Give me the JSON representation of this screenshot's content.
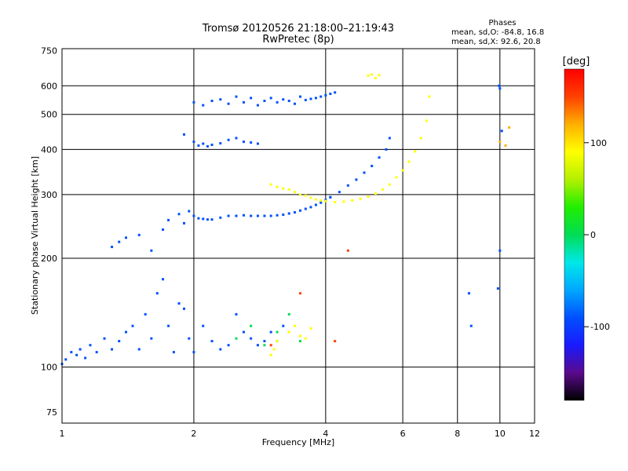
{
  "chart_data": {
    "type": "scatter",
    "title": "Tromsø 20120526 21:18:00–21:19:43",
    "subtitle": "RwPretec (8p)",
    "xlabel": "Frequency [MHz]",
    "ylabel": "Stationary phase Virtual Height [km]",
    "x_scale": "log",
    "y_scale": "log",
    "xlim": [
      1,
      12
    ],
    "ylim": [
      70,
      760
    ],
    "x_ticks": [
      1,
      2,
      4,
      6,
      8,
      10,
      12
    ],
    "y_ticks": [
      75,
      100,
      200,
      300,
      400,
      500,
      600,
      750
    ],
    "grid": true,
    "phases": {
      "header": "Phases",
      "line_o": "mean, sd,O: -84.8, 16.8",
      "line_x": "mean, sd,X: 92.6, 20.8"
    },
    "colorbar": {
      "label": "[deg]",
      "range": [
        -180,
        180
      ],
      "ticks": [
        100,
        0,
        -100
      ],
      "colors": [
        "#000000",
        "#5a0a8c",
        "#1a1aff",
        "#0050ff",
        "#00a8ff",
        "#00e8e8",
        "#00dd55",
        "#22ee00",
        "#b4f000",
        "#ffff00",
        "#ffb000",
        "#ff4000",
        "#ff0000"
      ]
    },
    "series": [
      {
        "phase": -100,
        "x": [
          1.0,
          1.02,
          1.05,
          1.08,
          1.1,
          1.13,
          1.16,
          1.2,
          1.25,
          1.3,
          1.35,
          1.4,
          1.45,
          1.5,
          1.55,
          1.6,
          1.65,
          1.7,
          1.75,
          1.8,
          1.85,
          1.9,
          1.95,
          2.0,
          2.1,
          2.2,
          2.3,
          2.4,
          2.5,
          2.6,
          2.7,
          2.8,
          2.9,
          3.0,
          3.1,
          3.2
        ],
        "y": [
          102,
          105,
          110,
          108,
          112,
          106,
          115,
          110,
          120,
          112,
          118,
          125,
          130,
          112,
          140,
          120,
          160,
          175,
          130,
          110,
          150,
          145,
          120,
          110,
          130,
          118,
          112,
          115,
          140,
          125,
          120,
          115,
          118,
          125,
          118,
          130
        ]
      },
      {
        "phase": -100,
        "x": [
          1.3,
          1.35,
          1.4,
          1.5,
          1.6,
          1.7,
          1.75,
          1.85,
          1.9,
          1.95,
          2.0,
          2.05,
          2.1,
          2.15,
          2.2,
          2.3,
          2.4,
          2.5,
          2.6,
          2.7,
          2.8,
          2.9,
          3.0,
          3.1,
          3.2,
          3.3,
          3.4,
          3.5,
          3.6,
          3.7,
          3.8,
          3.9,
          4.0,
          4.1
        ],
        "y": [
          215,
          222,
          228,
          232,
          210,
          240,
          255,
          265,
          250,
          270,
          262,
          258,
          257,
          256,
          256,
          259,
          262,
          262,
          263,
          262,
          262,
          262,
          262,
          263,
          264,
          266,
          268,
          271,
          274,
          277,
          281,
          285,
          290,
          295
        ]
      },
      {
        "phase": -100,
        "x": [
          4.1,
          4.3,
          4.5,
          4.7,
          4.9,
          5.1,
          5.3,
          5.5,
          5.6
        ],
        "y": [
          295,
          305,
          318,
          330,
          345,
          360,
          380,
          400,
          430
        ]
      },
      {
        "phase": -100,
        "x": [
          1.9,
          2.0,
          2.05,
          2.1,
          2.15,
          2.2,
          2.3,
          2.4,
          2.5,
          2.6,
          2.7,
          2.8
        ],
        "y": [
          440,
          420,
          410,
          415,
          408,
          412,
          416,
          425,
          430,
          420,
          418,
          415
        ]
      },
      {
        "phase": -100,
        "x": [
          2.0,
          2.1,
          2.2,
          2.3,
          2.4,
          2.5,
          2.6,
          2.7,
          2.8,
          2.9,
          3.0,
          3.1,
          3.2,
          3.3,
          3.4,
          3.5,
          3.6,
          3.7,
          3.8,
          3.9,
          4.0,
          4.1,
          4.2
        ],
        "y": [
          540,
          530,
          545,
          550,
          535,
          560,
          540,
          555,
          530,
          545,
          555,
          540,
          550,
          545,
          535,
          560,
          548,
          552,
          555,
          560,
          565,
          570,
          575
        ]
      },
      {
        "phase": 100,
        "x": [
          3.0,
          3.1,
          3.2,
          3.3,
          3.4,
          3.5,
          3.6,
          3.7,
          3.8,
          3.9,
          4.0
        ],
        "y": [
          320,
          315,
          312,
          310,
          305,
          300,
          298,
          294,
          291,
          289,
          288
        ]
      },
      {
        "phase": 100,
        "x": [
          4.2,
          4.4,
          4.6,
          4.8,
          5.0,
          5.2,
          5.4,
          5.6,
          5.8,
          6.0,
          6.2,
          6.4,
          6.6,
          6.8,
          6.9
        ],
        "y": [
          286,
          287,
          289,
          292,
          296,
          302,
          310,
          320,
          335,
          350,
          370,
          395,
          430,
          480,
          560
        ]
      },
      {
        "phase": 100,
        "x": [
          3.0,
          3.05,
          3.1,
          3.3,
          3.4,
          3.5,
          3.6,
          3.7
        ],
        "y": [
          108,
          112,
          118,
          125,
          130,
          122,
          120,
          128
        ]
      },
      {
        "phase": 100,
        "x": [
          5.0,
          5.1,
          5.2,
          5.3
        ],
        "y": [
          640,
          645,
          630,
          642
        ]
      },
      {
        "phase": 0,
        "x": [
          2.5,
          2.7,
          2.9,
          3.1,
          3.3,
          3.5
        ],
        "y": [
          120,
          130,
          115,
          125,
          140,
          118
        ]
      },
      {
        "phase": 150,
        "x": [
          3.0,
          3.5,
          4.2,
          4.5
        ],
        "y": [
          115,
          160,
          118,
          210
        ]
      },
      {
        "phase": -100,
        "x": [
          8.5,
          8.6,
          9.9,
          10.0,
          10.1,
          9.95,
          10.0
        ],
        "y": [
          160,
          130,
          165,
          210,
          450,
          600,
          590
        ]
      },
      {
        "phase": 120,
        "x": [
          10.5,
          10.3,
          10.0
        ],
        "y": [
          460,
          410,
          420
        ]
      }
    ]
  }
}
